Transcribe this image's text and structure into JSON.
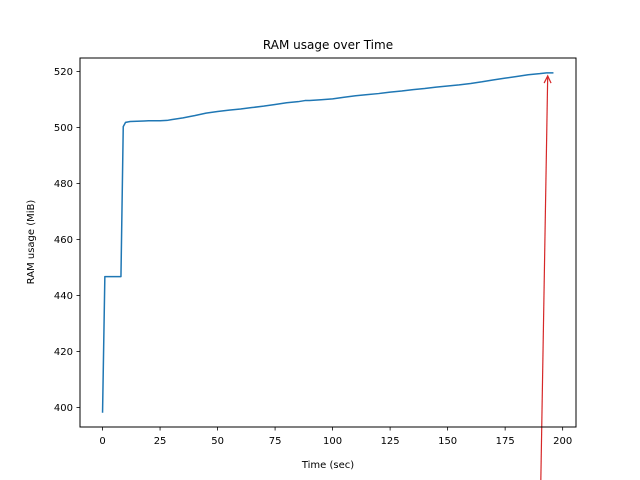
{
  "chart_data": {
    "type": "line",
    "title": "RAM usage over Time",
    "xlabel": "Time (sec)",
    "ylabel": "RAM usage (MiB)",
    "xlim": [
      -9.8,
      205.8
    ],
    "ylim": [
      393.0,
      524.8
    ],
    "xticks": [
      0,
      25,
      50,
      75,
      100,
      125,
      150,
      175,
      200
    ],
    "yticks": [
      400,
      420,
      440,
      460,
      480,
      500,
      520
    ],
    "grid": false,
    "legend": "none",
    "series": [
      {
        "color": "#1f77b4",
        "x": [
          0,
          1,
          2,
          4,
          6,
          8,
          9,
          10,
          12,
          15,
          18,
          20,
          25,
          28,
          30,
          35,
          38,
          40,
          45,
          50,
          55,
          60,
          65,
          70,
          75,
          80,
          85,
          88,
          90,
          95,
          100,
          105,
          110,
          115,
          120,
          125,
          130,
          135,
          140,
          145,
          150,
          155,
          160,
          165,
          170,
          175,
          180,
          185,
          190,
          193,
          196
        ],
        "y": [
          398.1,
          446.7,
          446.7,
          446.7,
          446.7,
          446.7,
          500.3,
          501.8,
          502.1,
          502.2,
          502.3,
          502.4,
          502.4,
          502.5,
          502.8,
          503.4,
          503.9,
          504.2,
          505.1,
          505.7,
          506.2,
          506.6,
          507.1,
          507.6,
          508.2,
          508.8,
          509.2,
          509.6,
          509.6,
          509.9,
          510.2,
          510.8,
          511.3,
          511.7,
          512.1,
          512.6,
          513.0,
          513.5,
          513.9,
          514.4,
          514.8,
          515.2,
          515.7,
          516.3,
          517.0,
          517.6,
          518.2,
          518.8,
          519.2,
          519.5,
          519.5
        ]
      }
    ],
    "annotation": {
      "type": "arrow",
      "color": "#d62728",
      "from": [
        190.5,
        393.0
      ],
      "to": [
        193.5,
        518.4
      ]
    }
  }
}
